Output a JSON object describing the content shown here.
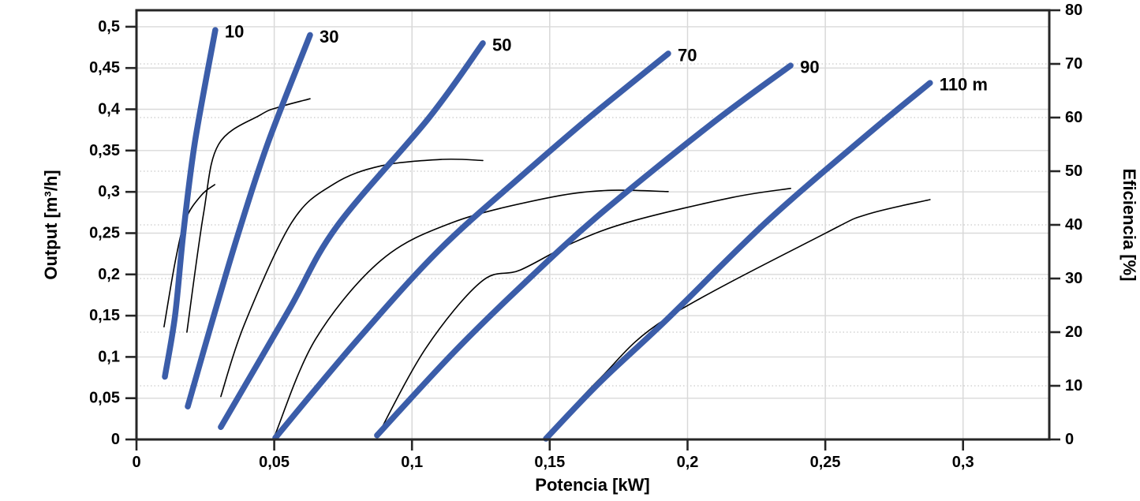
{
  "chart_data": {
    "type": "line",
    "title": "",
    "xlabel": "Potencia [kW]",
    "ylabel_left": "Output [m³/h]",
    "ylabel_right": "Eficiencia [%]",
    "xlim": [
      0,
      0.3313
    ],
    "ylim_left": [
      0,
      0.52
    ],
    "ylim_right": [
      0,
      80
    ],
    "x_ticks": {
      "values": [
        0,
        0.05,
        0.1,
        0.15,
        0.2,
        0.25,
        0.3
      ],
      "labels": [
        "0",
        "0,05",
        "0,1",
        "0,15",
        "0,2",
        "0,25",
        "0,3"
      ]
    },
    "y_left_ticks": {
      "values": [
        0,
        0.05,
        0.1,
        0.15,
        0.2,
        0.25,
        0.3,
        0.35,
        0.4,
        0.45,
        0.5
      ],
      "labels": [
        "0",
        "0,05",
        "0,1",
        "0,15",
        "0,2",
        "0,25",
        "0,3",
        "0,35",
        "0,4",
        "0,45",
        "0,5"
      ]
    },
    "y_right_ticks": {
      "values": [
        0,
        10,
        20,
        30,
        40,
        50,
        60,
        70,
        80
      ],
      "labels": [
        "0",
        "10",
        "20",
        "30",
        "40",
        "50",
        "60",
        "70",
        "80"
      ]
    },
    "grid": {
      "horizontal_solid_at": [
        0.05,
        0.1,
        0.15,
        0.2,
        0.25,
        0.3,
        0.35,
        0.4,
        0.45,
        0.5
      ],
      "horizontal_dotted_at_efficiency": [
        10,
        20,
        30,
        40,
        50,
        60,
        70
      ],
      "vertical_solid_at": [
        0.05,
        0.1,
        0.15,
        0.2,
        0.25,
        0.3
      ]
    },
    "colors": {
      "pump_curve": "#3b5da9",
      "efficiency_curve": "#000000",
      "grid_solid": "#d9d9d9",
      "grid_dotted": "#c9c9c9",
      "axis": "#262626",
      "text": "#000000"
    },
    "series": [
      {
        "name": "pump-10m",
        "style": "pump",
        "axis": "left",
        "label": "10",
        "points": [
          [
            0.0103,
            0.076
          ],
          [
            0.014,
            0.15
          ],
          [
            0.017,
            0.25
          ],
          [
            0.0212,
            0.36
          ],
          [
            0.0286,
            0.496
          ]
        ]
      },
      {
        "name": "pump-30m",
        "style": "pump",
        "axis": "left",
        "label": "30",
        "points": [
          [
            0.0186,
            0.04
          ],
          [
            0.0272,
            0.14
          ],
          [
            0.037,
            0.25
          ],
          [
            0.0478,
            0.36
          ],
          [
            0.063,
            0.49
          ]
        ]
      },
      {
        "name": "pump-50m",
        "style": "pump",
        "axis": "left",
        "label": "50",
        "points": [
          [
            0.0306,
            0.015
          ],
          [
            0.055,
            0.155
          ],
          [
            0.0727,
            0.258
          ],
          [
            0.106,
            0.389
          ],
          [
            0.1257,
            0.48
          ]
        ]
      },
      {
        "name": "pump-70m",
        "style": "pump",
        "axis": "left",
        "label": "70",
        "points": [
          [
            0.0504,
            0.002
          ],
          [
            0.08,
            0.12
          ],
          [
            0.11,
            0.23
          ],
          [
            0.14,
            0.32
          ],
          [
            0.164,
            0.389
          ],
          [
            0.193,
            0.4675
          ]
        ]
      },
      {
        "name": "pump-90m",
        "style": "pump",
        "axis": "left",
        "label": "90",
        "points": [
          [
            0.0873,
            0.005
          ],
          [
            0.115,
            0.105
          ],
          [
            0.1394,
            0.185
          ],
          [
            0.1672,
            0.27
          ],
          [
            0.2082,
            0.381
          ],
          [
            0.2374,
            0.453
          ]
        ]
      },
      {
        "name": "pump-110m",
        "style": "pump",
        "axis": "left",
        "label": "110 m",
        "points": [
          [
            0.1486,
            0.001
          ],
          [
            0.1681,
            0.069
          ],
          [
            0.1924,
            0.145
          ],
          [
            0.2291,
            0.265
          ],
          [
            0.2655,
            0.37
          ],
          [
            0.288,
            0.432
          ]
        ]
      },
      {
        "name": "efficiency-10m",
        "style": "efficiency",
        "axis": "right",
        "label": "",
        "points": [
          [
            0.01,
            21
          ],
          [
            0.014,
            33
          ],
          [
            0.0178,
            41
          ],
          [
            0.0235,
            45.5
          ],
          [
            0.0284,
            47.5
          ]
        ]
      },
      {
        "name": "efficiency-30m",
        "style": "efficiency",
        "axis": "right",
        "label": "",
        "points": [
          [
            0.0183,
            20
          ],
          [
            0.0243,
            42
          ],
          [
            0.0298,
            55
          ],
          [
            0.045,
            60.5
          ],
          [
            0.0521,
            62
          ],
          [
            0.063,
            63.5
          ]
        ]
      },
      {
        "name": "efficiency-50m",
        "style": "efficiency",
        "axis": "right",
        "label": "",
        "points": [
          [
            0.0306,
            8
          ],
          [
            0.0392,
            21.5
          ],
          [
            0.0564,
            40.5
          ],
          [
            0.0716,
            47.6
          ],
          [
            0.0888,
            51
          ],
          [
            0.111,
            52.2
          ],
          [
            0.1257,
            52
          ]
        ]
      },
      {
        "name": "efficiency-70m",
        "style": "efficiency",
        "axis": "right",
        "label": "",
        "points": [
          [
            0.0504,
            1
          ],
          [
            0.065,
            18.7
          ],
          [
            0.0888,
            33.4
          ],
          [
            0.115,
            40.5
          ],
          [
            0.148,
            44.9
          ],
          [
            0.17,
            46.4
          ],
          [
            0.193,
            46.2
          ]
        ]
      },
      {
        "name": "efficiency-90m",
        "style": "efficiency",
        "axis": "right",
        "label": "",
        "points": [
          [
            0.0873,
            0.5
          ],
          [
            0.105,
            17
          ],
          [
            0.1251,
            29.4
          ],
          [
            0.1394,
            31.6
          ],
          [
            0.159,
            36.8
          ],
          [
            0.18,
            40.7
          ],
          [
            0.2162,
            45.1
          ],
          [
            0.2374,
            46.8
          ]
        ]
      },
      {
        "name": "efficiency-110m",
        "style": "efficiency",
        "axis": "right",
        "label": "",
        "points": [
          [
            0.1486,
            0.5
          ],
          [
            0.1681,
            11.3
          ],
          [
            0.1924,
            22.6
          ],
          [
            0.2503,
            38.5
          ],
          [
            0.2655,
            42
          ],
          [
            0.288,
            44.7
          ]
        ]
      }
    ]
  }
}
